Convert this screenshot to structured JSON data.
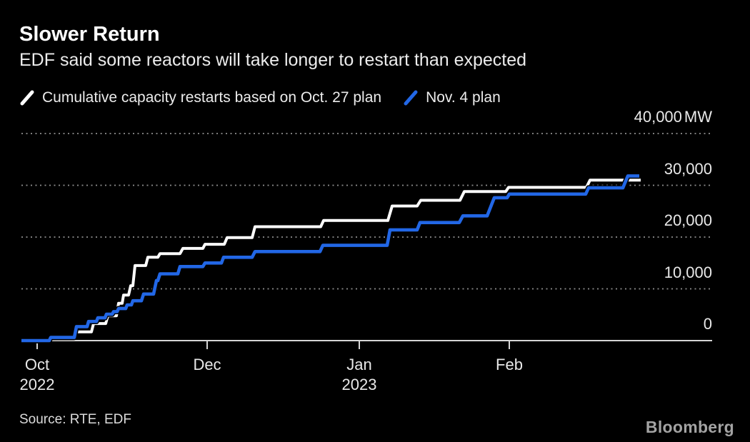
{
  "header": {
    "title": "Slower Return",
    "subtitle": "EDF said some reactors will take longer to restart than expected"
  },
  "legend": [
    {
      "label": "Cumulative capacity restarts based on Oct. 27 plan",
      "color": "#ffffff"
    },
    {
      "label": "Nov. 4 plan",
      "color": "#2267e6"
    }
  ],
  "footer": {
    "source": "Source: RTE, EDF",
    "logo": "Bloomberg"
  },
  "colors": {
    "background": "#000000",
    "title": "#ffffff",
    "text": "#ececec",
    "label": "#e9e9e9",
    "axis_line": "#d6d6d6",
    "gridline": "#8f8f8f",
    "source": "#dcdcdc",
    "logo": "#a3a3a3"
  },
  "chart_data": {
    "type": "line",
    "step": true,
    "title": "Slower Return",
    "ylabel": "",
    "xlabel": "",
    "unit": "MW",
    "ylim": [
      0,
      40000
    ],
    "grid": "horizontal-dotted",
    "legend_position": "top",
    "y_ticks": [
      {
        "value": 0,
        "label": "0"
      },
      {
        "value": 10000,
        "label": "10,000"
      },
      {
        "value": 20000,
        "label": "20,000"
      },
      {
        "value": 30000,
        "label": "30,000"
      },
      {
        "value": 40000,
        "label": "40,000",
        "unit": "MW"
      }
    ],
    "x_ticks": [
      {
        "pos": 2.28,
        "label": "Oct",
        "year": "2022"
      },
      {
        "pos": 26.89,
        "label": "Dec"
      },
      {
        "pos": 48.91,
        "label": "Jan",
        "year": "2023"
      },
      {
        "pos": 70.63,
        "label": "Feb"
      }
    ],
    "x_axis_note": "x positions are percent along the time axis, Oct 2022 - Feb 2023; values in MW",
    "series": [
      {
        "name": "Cumulative capacity restarts based on Oct. 27 plan",
        "color": "#ffffff",
        "points": [
          [
            0,
            0
          ],
          [
            4.03,
            0
          ],
          [
            4.24,
            600
          ],
          [
            7.55,
            600
          ],
          [
            7.86,
            1700
          ],
          [
            10.13,
            1700
          ],
          [
            10.44,
            3300
          ],
          [
            12.2,
            3300
          ],
          [
            12.51,
            4800
          ],
          [
            13.75,
            4800
          ],
          [
            14.06,
            7200
          ],
          [
            14.58,
            7200
          ],
          [
            14.79,
            8800
          ],
          [
            15.51,
            8800
          ],
          [
            15.82,
            10600
          ],
          [
            16.13,
            10600
          ],
          [
            16.44,
            14500
          ],
          [
            17.99,
            14500
          ],
          [
            18.3,
            16100
          ],
          [
            19.75,
            16100
          ],
          [
            20.06,
            16800
          ],
          [
            22.96,
            16800
          ],
          [
            23.37,
            17800
          ],
          [
            26.27,
            17800
          ],
          [
            26.58,
            18600
          ],
          [
            29.37,
            18600
          ],
          [
            29.78,
            19900
          ],
          [
            33.4,
            19900
          ],
          [
            33.82,
            22000
          ],
          [
            43.33,
            22000
          ],
          [
            43.74,
            23200
          ],
          [
            53.05,
            23200
          ],
          [
            53.67,
            26000
          ],
          [
            57.29,
            26000
          ],
          [
            57.81,
            27100
          ],
          [
            63.5,
            27100
          ],
          [
            64.12,
            28800
          ],
          [
            70.11,
            28800
          ],
          [
            70.53,
            29600
          ],
          [
            81.8,
            29600
          ],
          [
            82.32,
            31000
          ],
          [
            89.66,
            31000
          ]
        ]
      },
      {
        "name": "Nov. 4 plan",
        "color": "#2267e6",
        "points": [
          [
            0,
            0
          ],
          [
            4.03,
            0
          ],
          [
            4.24,
            600
          ],
          [
            7.65,
            600
          ],
          [
            7.96,
            2700
          ],
          [
            9.51,
            2700
          ],
          [
            9.72,
            3700
          ],
          [
            10.86,
            3700
          ],
          [
            11.07,
            4400
          ],
          [
            12.1,
            4400
          ],
          [
            12.31,
            5100
          ],
          [
            13.13,
            5100
          ],
          [
            13.34,
            5600
          ],
          [
            13.86,
            5600
          ],
          [
            14.06,
            6200
          ],
          [
            15.1,
            6200
          ],
          [
            15.31,
            6900
          ],
          [
            15.93,
            6900
          ],
          [
            16.13,
            7700
          ],
          [
            17.37,
            7700
          ],
          [
            17.68,
            9000
          ],
          [
            19.13,
            9000
          ],
          [
            19.54,
            11600
          ],
          [
            19.75,
            11600
          ],
          [
            20.06,
            12900
          ],
          [
            22.65,
            12900
          ],
          [
            22.96,
            14300
          ],
          [
            26.27,
            14300
          ],
          [
            26.58,
            15000
          ],
          [
            28.96,
            15000
          ],
          [
            29.27,
            16100
          ],
          [
            33.4,
            16100
          ],
          [
            33.82,
            17200
          ],
          [
            43.23,
            17200
          ],
          [
            43.64,
            18400
          ],
          [
            52.95,
            18400
          ],
          [
            53.36,
            21400
          ],
          [
            57.29,
            21400
          ],
          [
            57.7,
            22800
          ],
          [
            63.39,
            22800
          ],
          [
            63.91,
            24100
          ],
          [
            67.43,
            24100
          ],
          [
            68.46,
            27600
          ],
          [
            70.32,
            27600
          ],
          [
            70.63,
            28300
          ],
          [
            81.7,
            28300
          ],
          [
            82.11,
            29500
          ],
          [
            87.07,
            29500
          ],
          [
            87.8,
            31800
          ],
          [
            89.45,
            31800
          ]
        ]
      }
    ]
  }
}
